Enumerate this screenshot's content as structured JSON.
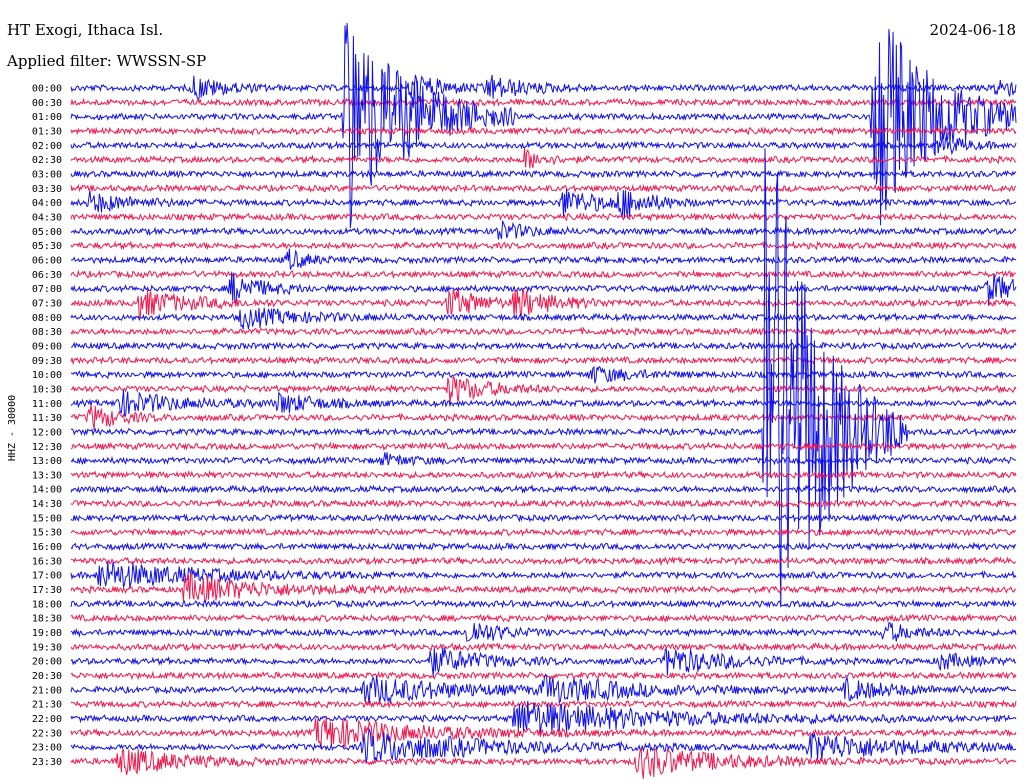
{
  "header": {
    "station": "HT Exogi, Ithaca Isl.",
    "filter": "Applied filter: WWSSN-SP",
    "date": "2024-06-18"
  },
  "chart_data": {
    "type": "line",
    "title": "HT Exogi, Ithaca Isl.",
    "subtitle": "Applied filter: WWSSN-SP",
    "ylabel": "HHZ - 30000",
    "row_labels": [
      "00:00",
      "00:30",
      "01:00",
      "01:30",
      "02:00",
      "02:30",
      "03:00",
      "03:30",
      "04:00",
      "04:30",
      "05:00",
      "05:30",
      "06:00",
      "06:30",
      "07:00",
      "07:30",
      "08:00",
      "08:30",
      "09:00",
      "09:30",
      "10:00",
      "10:30",
      "11:00",
      "11:30",
      "12:00",
      "12:30",
      "13:00",
      "13:30",
      "14:00",
      "14:30",
      "15:00",
      "15:30",
      "16:00",
      "16:30",
      "17:00",
      "17:30",
      "18:00",
      "18:30",
      "19:00",
      "19:30",
      "20:00",
      "20:30",
      "21:00",
      "21:30",
      "22:00",
      "22:30",
      "23:00",
      "23:30"
    ],
    "colors": [
      "#1010e8",
      "#f0184c"
    ],
    "events": [
      {
        "row": 0,
        "pos": 0.13,
        "amp": 12,
        "dur": 0.03
      },
      {
        "row": 0,
        "pos": 0.36,
        "amp": 16,
        "dur": 0.03
      },
      {
        "row": 0,
        "pos": 0.44,
        "amp": 12,
        "dur": 0.04
      },
      {
        "row": 0,
        "pos": 0.98,
        "amp": 12,
        "dur": 0.02
      },
      {
        "row": 2,
        "pos": 0.29,
        "amp": 120,
        "dur": 0.06
      },
      {
        "row": 2,
        "pos": 0.85,
        "amp": 120,
        "dur": 0.06
      },
      {
        "row": 4,
        "pos": 0.92,
        "amp": 12,
        "dur": 0.02
      },
      {
        "row": 5,
        "pos": 0.48,
        "amp": 10,
        "dur": 0.02
      },
      {
        "row": 8,
        "pos": 0.02,
        "amp": 10,
        "dur": 0.04
      },
      {
        "row": 8,
        "pos": 0.52,
        "amp": 14,
        "dur": 0.04
      },
      {
        "row": 8,
        "pos": 0.58,
        "amp": 14,
        "dur": 0.03
      },
      {
        "row": 10,
        "pos": 0.45,
        "amp": 10,
        "dur": 0.03
      },
      {
        "row": 12,
        "pos": 0.23,
        "amp": 10,
        "dur": 0.02
      },
      {
        "row": 14,
        "pos": 0.17,
        "amp": 16,
        "dur": 0.03
      },
      {
        "row": 14,
        "pos": 0.97,
        "amp": 16,
        "dur": 0.03
      },
      {
        "row": 15,
        "pos": 0.07,
        "amp": 14,
        "dur": 0.05
      },
      {
        "row": 15,
        "pos": 0.4,
        "amp": 16,
        "dur": 0.03
      },
      {
        "row": 15,
        "pos": 0.47,
        "amp": 14,
        "dur": 0.04
      },
      {
        "row": 16,
        "pos": 0.18,
        "amp": 10,
        "dur": 0.06
      },
      {
        "row": 20,
        "pos": 0.55,
        "amp": 8,
        "dur": 0.04
      },
      {
        "row": 21,
        "pos": 0.4,
        "amp": 14,
        "dur": 0.04
      },
      {
        "row": 22,
        "pos": 0.05,
        "amp": 12,
        "dur": 0.06
      },
      {
        "row": 22,
        "pos": 0.22,
        "amp": 10,
        "dur": 0.04
      },
      {
        "row": 23,
        "pos": 0.02,
        "amp": 12,
        "dur": 0.03
      },
      {
        "row": 24,
        "pos": 0.735,
        "amp": 340,
        "dur": 0.05
      },
      {
        "row": 26,
        "pos": 0.33,
        "amp": 6,
        "dur": 0.03
      },
      {
        "row": 34,
        "pos": 0.03,
        "amp": 14,
        "dur": 0.1
      },
      {
        "row": 35,
        "pos": 0.12,
        "amp": 14,
        "dur": 0.08
      },
      {
        "row": 38,
        "pos": 0.42,
        "amp": 14,
        "dur": 0.03
      },
      {
        "row": 38,
        "pos": 0.86,
        "amp": 10,
        "dur": 0.03
      },
      {
        "row": 40,
        "pos": 0.38,
        "amp": 14,
        "dur": 0.05
      },
      {
        "row": 40,
        "pos": 0.63,
        "amp": 14,
        "dur": 0.06
      },
      {
        "row": 40,
        "pos": 0.92,
        "amp": 8,
        "dur": 0.03
      },
      {
        "row": 42,
        "pos": 0.31,
        "amp": 14,
        "dur": 0.09
      },
      {
        "row": 42,
        "pos": 0.5,
        "amp": 12,
        "dur": 0.1
      },
      {
        "row": 42,
        "pos": 0.82,
        "amp": 10,
        "dur": 0.05
      },
      {
        "row": 44,
        "pos": 0.47,
        "amp": 18,
        "dur": 0.14
      },
      {
        "row": 45,
        "pos": 0.26,
        "amp": 16,
        "dur": 0.1
      },
      {
        "row": 46,
        "pos": 0.31,
        "amp": 16,
        "dur": 0.12
      },
      {
        "row": 46,
        "pos": 0.78,
        "amp": 14,
        "dur": 0.1
      },
      {
        "row": 47,
        "pos": 0.05,
        "amp": 14,
        "dur": 0.06
      },
      {
        "row": 47,
        "pos": 0.6,
        "amp": 16,
        "dur": 0.08
      }
    ]
  }
}
